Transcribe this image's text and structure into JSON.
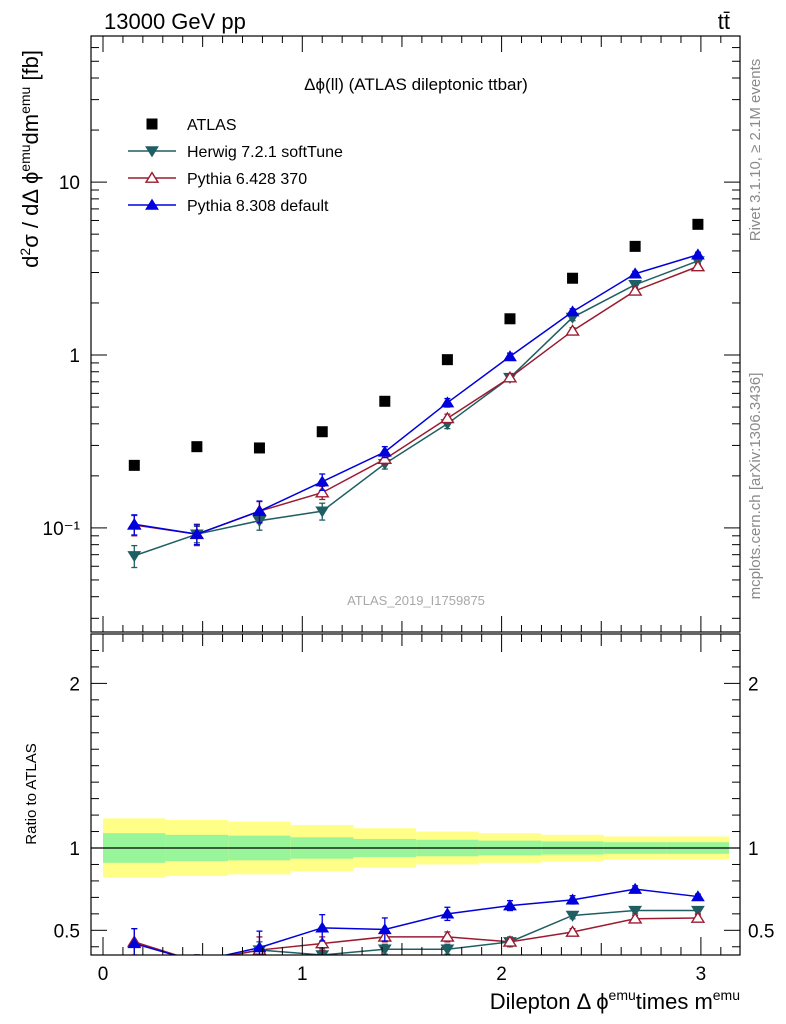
{
  "header": {
    "process": "13000 GeV pp",
    "final_state": "tt̄"
  },
  "side_labels": {
    "rivet": "Rivet 3.1.10, ≥ 2.1M events",
    "source": "mcplots.cern.ch [arXiv:1306.3436]"
  },
  "colors": {
    "data": "#000000",
    "herwig": "#1f5f63",
    "pythia6": "#9b1b30",
    "pythia8": "#0000dd",
    "band_outer": "#ffff88",
    "band_inner": "#99f599",
    "ref_line": "#000000"
  },
  "chart_data": [
    {
      "type": "scatter",
      "title": "Δϕ(ll) (ATLAS dileptonic ttbar)",
      "ylabel": "d²σ / dΔϕ^emu dm^emu [fb]",
      "watermark": "ATLAS_2019_I1759875",
      "yscale": "log",
      "xlim": [
        -0.1,
        3.2
      ],
      "ylim": [
        0.025,
        70
      ],
      "ytick_labels": [
        {
          "value": 0.1,
          "label": "10⁻¹"
        },
        {
          "value": 1,
          "label": "1"
        },
        {
          "value": 10,
          "label": "10"
        }
      ],
      "legend_placement": "top-left",
      "x": [
        0.157,
        0.471,
        0.785,
        1.1,
        1.414,
        1.728,
        2.042,
        2.356,
        2.67,
        2.985
      ],
      "series": [
        {
          "name": "ATLAS",
          "marker": "square",
          "line": false,
          "values": [
            0.23,
            0.295,
            0.29,
            0.36,
            0.54,
            0.94,
            1.62,
            2.78,
            4.25,
            5.7
          ]
        },
        {
          "name": "Herwig 7.2.1 softTune",
          "marker": "triangle-down",
          "line": true,
          "values": [
            0.069,
            0.092,
            0.11,
            0.125,
            0.235,
            0.4,
            0.74,
            1.65,
            2.55,
            3.5
          ],
          "err": [
            0.01,
            0.01,
            0.013,
            0.014,
            0.016,
            0.025,
            0.04,
            0.07,
            0.1,
            0.13
          ]
        },
        {
          "name": "Pythia 6.428 370",
          "marker": "triangle-up-open",
          "line": true,
          "values": [
            0.104,
            0.092,
            0.125,
            0.16,
            0.25,
            0.43,
            0.74,
            1.38,
            2.35,
            3.25
          ],
          "err": [
            0.014,
            0.013,
            0.017,
            0.014,
            0.016,
            0.025,
            0.04,
            0.06,
            0.09,
            0.12
          ]
        },
        {
          "name": "Pythia 8.308 default",
          "marker": "triangle-up",
          "line": true,
          "values": [
            0.105,
            0.092,
            0.125,
            0.185,
            0.275,
            0.53,
            0.98,
            1.78,
            2.95,
            3.8
          ],
          "err": [
            0.014,
            0.012,
            0.018,
            0.02,
            0.02,
            0.03,
            0.045,
            0.07,
            0.1,
            0.13
          ]
        }
      ]
    },
    {
      "type": "scatter",
      "ylabel": "Ratio to ATLAS",
      "xlabel": "Dilepton Δϕ^emu times m^emu",
      "xlim": [
        -0.1,
        3.2
      ],
      "ylim": [
        0.35,
        2.3
      ],
      "x_ticks": [
        0,
        1,
        2,
        3
      ],
      "y_ticks": [
        0.5,
        1,
        2
      ],
      "bins": [
        0,
        0.314,
        0.628,
        0.942,
        1.257,
        1.571,
        1.885,
        2.199,
        2.513,
        2.827,
        3.141
      ],
      "band_outer": [
        0.18,
        0.17,
        0.16,
        0.14,
        0.12,
        0.1,
        0.09,
        0.08,
        0.07,
        0.07
      ],
      "band_inner": [
        0.09,
        0.08,
        0.075,
        0.065,
        0.055,
        0.05,
        0.045,
        0.04,
        0.035,
        0.035
      ],
      "x": [
        0.157,
        0.471,
        0.785,
        1.1,
        1.414,
        1.728,
        2.042,
        2.356,
        2.67,
        2.985
      ],
      "series": [
        {
          "name": "Herwig 7.2.1 softTune",
          "marker": "triangle-down",
          "values": [
            0.3,
            0.31,
            0.38,
            0.35,
            0.385,
            0.385,
            0.43,
            0.59,
            0.62,
            0.62
          ],
          "err": [
            0.04,
            0.04,
            0.05,
            0.04,
            0.03,
            0.03,
            0.03,
            0.02,
            0.02,
            0.02
          ]
        },
        {
          "name": "Pythia 6.428 370",
          "marker": "triangle-up-open",
          "values": [
            0.43,
            0.31,
            0.38,
            0.42,
            0.46,
            0.46,
            0.43,
            0.49,
            0.57,
            0.575
          ],
          "err": [
            0.08,
            0.04,
            0.08,
            0.04,
            0.03,
            0.03,
            0.02,
            0.02,
            0.02,
            0.02
          ]
        },
        {
          "name": "Pythia 8.308 default",
          "marker": "triangle-up",
          "values": [
            0.42,
            0.31,
            0.395,
            0.515,
            0.505,
            0.6,
            0.65,
            0.685,
            0.75,
            0.705
          ],
          "err": [
            0.09,
            0.04,
            0.1,
            0.08,
            0.07,
            0.04,
            0.03,
            0.025,
            0.02,
            0.015
          ]
        }
      ]
    }
  ]
}
